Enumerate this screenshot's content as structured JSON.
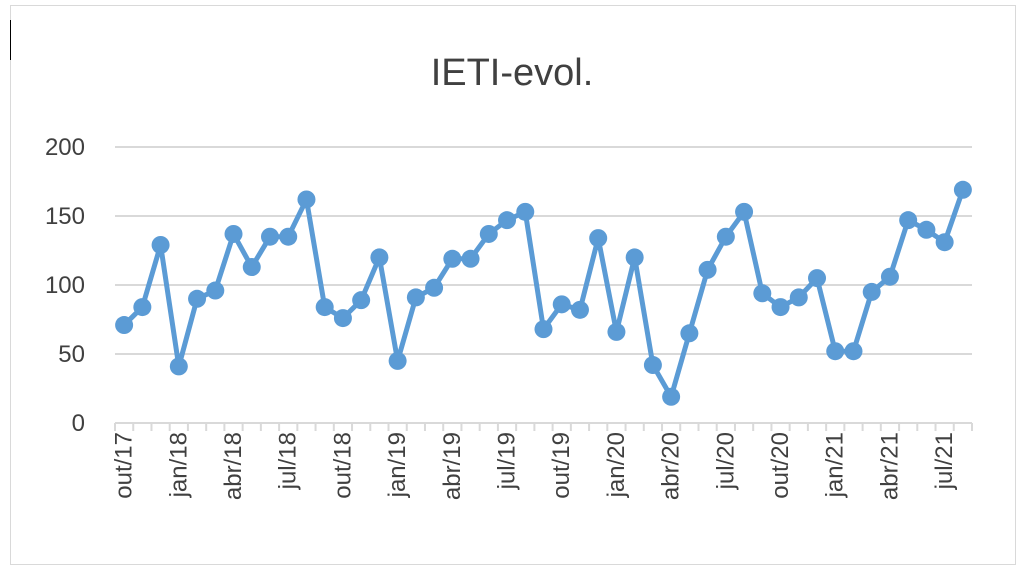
{
  "chart_data": {
    "type": "line",
    "title": "IETI-evol.",
    "xlabel": "",
    "ylabel": "",
    "ylim": [
      0,
      200
    ],
    "yticks": [
      0,
      50,
      100,
      150,
      200
    ],
    "grid": true,
    "legend": "none",
    "series_color": "#5b9bd5",
    "x_tick_labels": [
      "out/17",
      "jan/18",
      "abr/18",
      "jul/18",
      "out/18",
      "jan/19",
      "abr/19",
      "jul/19",
      "out/19",
      "jan/20",
      "abr/20",
      "jul/20",
      "out/20",
      "jan/21",
      "abr/21",
      "jul/21"
    ],
    "x": [
      "out/17",
      "nov/17",
      "dez/17",
      "jan/18",
      "fev/18",
      "mar/18",
      "abr/18",
      "mai/18",
      "jun/18",
      "jul/18",
      "ago/18",
      "set/18",
      "out/18",
      "nov/18",
      "dez/18",
      "jan/19",
      "fev/19",
      "mar/19",
      "abr/19",
      "mai/19",
      "jun/19",
      "jul/19",
      "ago/19",
      "set/19",
      "out/19",
      "nov/19",
      "dez/19",
      "jan/20",
      "fev/20",
      "mar/20",
      "abr/20",
      "mai/20",
      "jun/20",
      "jul/20",
      "ago/20",
      "set/20",
      "out/20",
      "nov/20",
      "dez/20",
      "jan/21",
      "fev/21",
      "mar/21",
      "abr/21",
      "mai/21",
      "jun/21",
      "jul/21",
      "ago/21"
    ],
    "series": [
      {
        "values": [
          71,
          84,
          129,
          41,
          90,
          96,
          137,
          113,
          135,
          135,
          162,
          84,
          76,
          89,
          120,
          45,
          91,
          98,
          119,
          119,
          137,
          147,
          153,
          68,
          86,
          82,
          134,
          66,
          120,
          42,
          19,
          65,
          111,
          135,
          153,
          94,
          84,
          91,
          105,
          52,
          52,
          95,
          106,
          147,
          140,
          131,
          169
        ]
      }
    ]
  }
}
